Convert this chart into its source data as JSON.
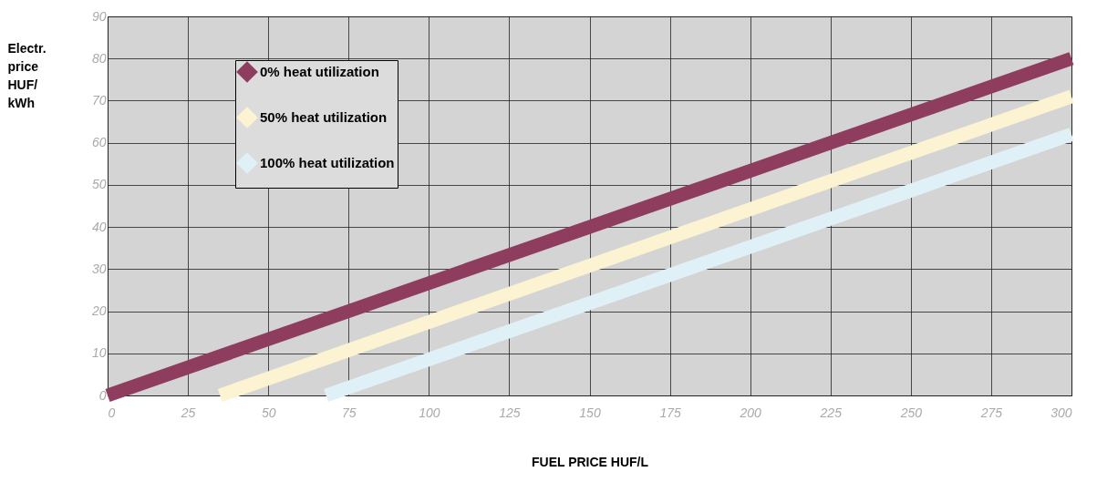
{
  "chart_data": {
    "type": "line",
    "xlabel": "FUEL PRICE HUF/L",
    "ylabel": "Electr.\nprice\nHUF/\nkWh",
    "series": [
      {
        "name": "0% heat utilization",
        "color": "#8e3d5e",
        "x": [
          0,
          300
        ],
        "values": [
          0,
          80
        ]
      },
      {
        "name": "50% heat utilization",
        "color": "#fbf3d2",
        "x": [
          35,
          300
        ],
        "values": [
          0,
          71
        ]
      },
      {
        "name": "100% heat utilization",
        "color": "#dff0f7",
        "x": [
          68,
          300
        ],
        "values": [
          0,
          62
        ]
      }
    ],
    "xlim": [
      0,
      300
    ],
    "xticks": [
      0,
      25,
      50,
      75,
      100,
      125,
      150,
      175,
      200,
      225,
      250,
      275,
      300
    ],
    "ylim": [
      0,
      90
    ],
    "yticks": [
      0,
      10,
      20,
      30,
      40,
      50,
      60,
      70,
      80,
      90
    ],
    "grid": true,
    "legend": "top left",
    "marker": "none",
    "line_style": "solid"
  }
}
